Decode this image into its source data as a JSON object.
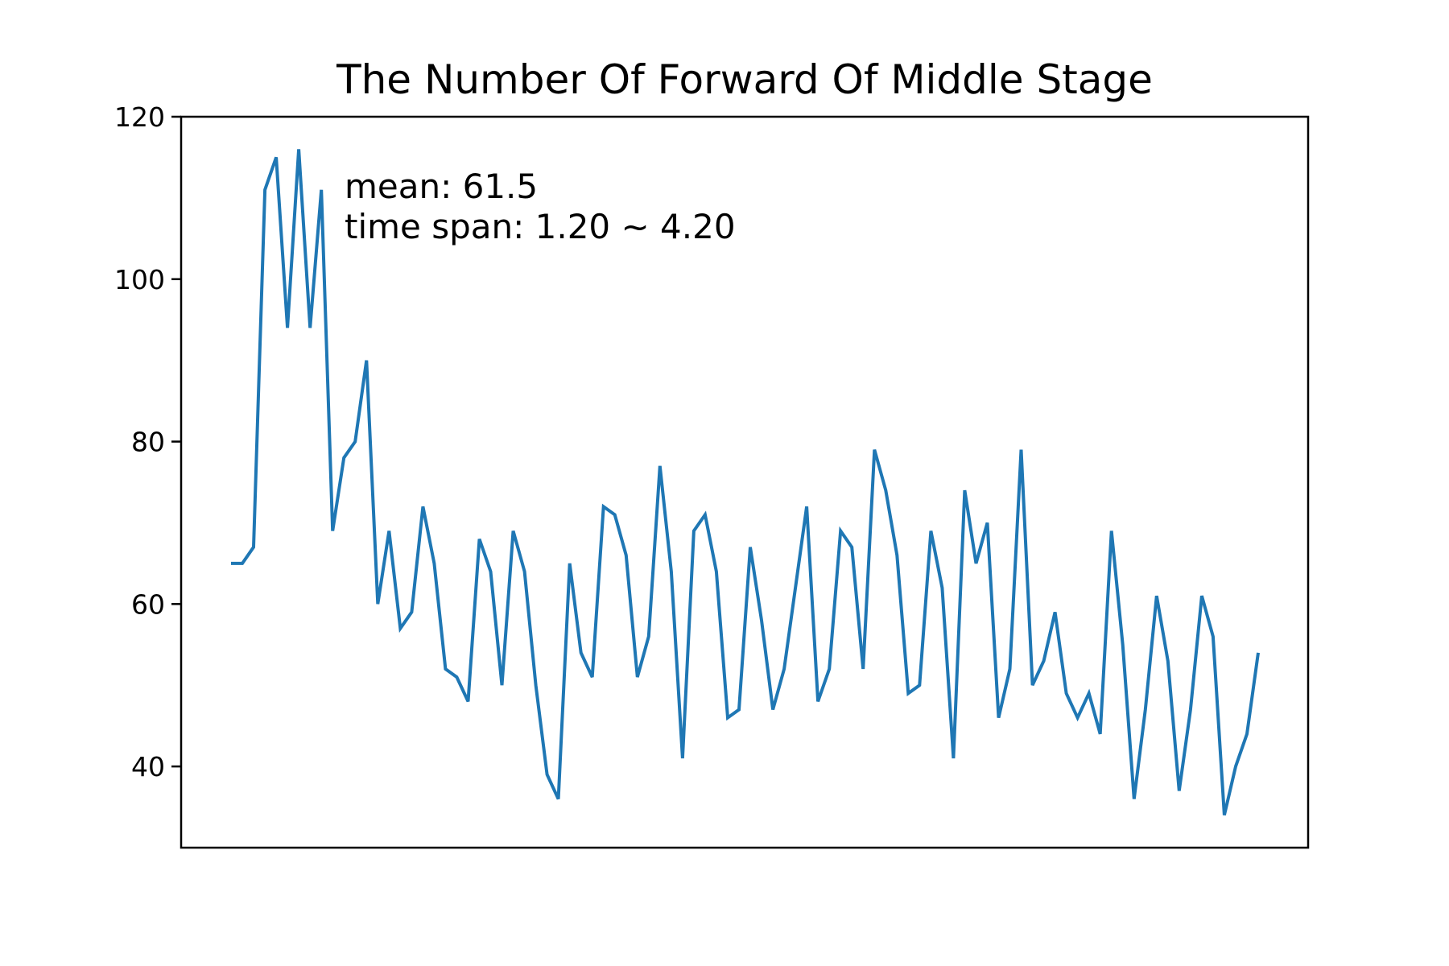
{
  "chart_data": {
    "type": "line",
    "title": "The Number Of Forward Of Middle Stage",
    "xlabel": "",
    "ylabel": "",
    "ylim": [
      30,
      120
    ],
    "yticks": [
      40,
      60,
      80,
      100,
      120
    ],
    "grid": false,
    "legend": "none",
    "color": "#1f77b4",
    "annotation": {
      "line1": "mean: 61.5",
      "line2": "time span: 1.20 ~ 4.20"
    },
    "series": [
      {
        "values": [
          65,
          65,
          67,
          111,
          115,
          94,
          116,
          94,
          111,
          69,
          78,
          80,
          90,
          60,
          69,
          57,
          59,
          72,
          65,
          52,
          51,
          48,
          68,
          64,
          50,
          69,
          64,
          50,
          39,
          36,
          65,
          54,
          51,
          72,
          71,
          66,
          51,
          56,
          77,
          64,
          41,
          69,
          71,
          64,
          46,
          47,
          67,
          58,
          47,
          52,
          62,
          72,
          48,
          52,
          69,
          67,
          52,
          79,
          74,
          66,
          49,
          50,
          69,
          62,
          41,
          74,
          65,
          70,
          46,
          52,
          79,
          50,
          53,
          59,
          49,
          46,
          49,
          44,
          69,
          55,
          36,
          47,
          61,
          53,
          37,
          47,
          61,
          56,
          34,
          40,
          44,
          54
        ]
      }
    ]
  }
}
